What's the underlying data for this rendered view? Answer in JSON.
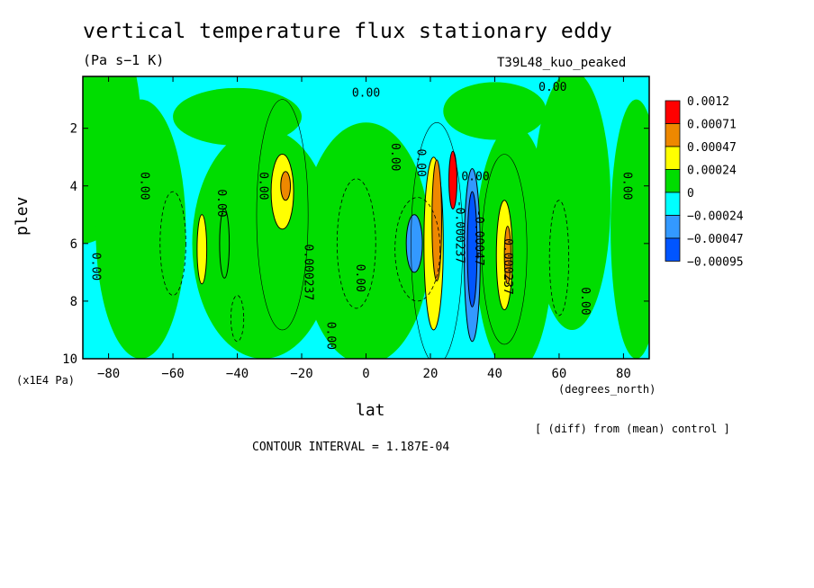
{
  "chart_data": {
    "type": "heatmap",
    "title": "vertical temperature flux stationary eddy",
    "units": "(Pa s−1 K)",
    "run_label": "T39L48_kuo_peaked",
    "xlabel": "lat",
    "xunits": "(degrees_north)",
    "ylabel": "plev",
    "yunits": "(x1E4 Pa)",
    "xlim": [
      -88,
      88
    ],
    "ylim": [
      10,
      0.2
    ],
    "xticks": [
      "−80",
      "−60",
      "−40",
      "−20",
      "0",
      "20",
      "40",
      "60",
      "80"
    ],
    "xtick_values": [
      -80,
      -60,
      -40,
      -20,
      0,
      20,
      40,
      60,
      80
    ],
    "yticks": [
      "2",
      "4",
      "6",
      "8",
      "10"
    ],
    "ytick_values": [
      2,
      4,
      6,
      8,
      10
    ],
    "colorbar": {
      "labels": [
        "0.0012",
        "0.00071",
        "0.00047",
        "0.00024",
        "0",
        "−0.00024",
        "−0.00047",
        "−0.00095"
      ],
      "colors": [
        "#ff0000",
        "#ee8800",
        "#ffff00",
        "#00dd00",
        "#00ffff",
        "#3399ff",
        "#0055ff"
      ]
    },
    "contour_labels": [
      {
        "text": "0.00",
        "lat": 0,
        "plev": 0.9
      },
      {
        "text": "0.00",
        "lat": 58,
        "plev": 0.7
      },
      {
        "text": "0.00",
        "lat": 8,
        "plev": 3.0
      },
      {
        "text": "0.00",
        "lat": 16,
        "plev": 3.2
      },
      {
        "text": "0.00",
        "lat": -70,
        "plev": 4.0
      },
      {
        "text": "0.00",
        "lat": -46,
        "plev": 4.6
      },
      {
        "text": "0.00",
        "lat": -33,
        "plev": 4.0
      },
      {
        "text": "0.00",
        "lat": 80,
        "plev": 4.0
      },
      {
        "text": "0.00",
        "lat": -85,
        "plev": 6.8
      },
      {
        "text": "0.00",
        "lat": -3,
        "plev": 7.2
      },
      {
        "text": "0.00",
        "lat": -12,
        "plev": 9.2
      },
      {
        "text": "0.00",
        "lat": 67,
        "plev": 8.0
      },
      {
        "text": "0.00",
        "lat": 34,
        "plev": 3.8
      },
      {
        "text": "0.000237",
        "lat": -19,
        "plev": 7.0
      },
      {
        "text": "0.000237",
        "lat": 43,
        "plev": 6.8
      },
      {
        "text": "-0.000237",
        "lat": 28,
        "plev": 5.6
      },
      {
        "text": "-0.00047",
        "lat": 34,
        "plev": 5.8
      }
    ],
    "blobs": [
      {
        "lat": -26,
        "plev": 4.2,
        "w": 7,
        "h": 2.6,
        "level": 2
      },
      {
        "lat": -25,
        "plev": 4.0,
        "w": 3,
        "h": 1.0,
        "level": 1
      },
      {
        "lat": -51,
        "plev": 6.2,
        "w": 3,
        "h": 2.4,
        "level": 2
      },
      {
        "lat": -44,
        "plev": 6.0,
        "w": 3,
        "h": 2.4,
        "level": 3
      },
      {
        "lat": 21,
        "plev": 6.0,
        "w": 6,
        "h": 6.0,
        "level": 2
      },
      {
        "lat": 22,
        "plev": 5.2,
        "w": 3,
        "h": 4.2,
        "level": 1
      },
      {
        "lat": 27,
        "plev": 3.8,
        "w": 2.5,
        "h": 2.0,
        "level": 0
      },
      {
        "lat": 15,
        "plev": 6.0,
        "w": 5,
        "h": 2.0,
        "level": 5
      },
      {
        "lat": 33,
        "plev": 6.4,
        "w": 5,
        "h": 6.0,
        "level": 5
      },
      {
        "lat": 33,
        "plev": 6.2,
        "w": 3,
        "h": 4.0,
        "level": 6
      },
      {
        "lat": 43,
        "plev": 6.4,
        "w": 5,
        "h": 3.8,
        "level": 2
      },
      {
        "lat": 44,
        "plev": 6.4,
        "w": 2,
        "h": 2.0,
        "level": 1
      }
    ]
  },
  "contour_interval_text": "CONTOUR INTERVAL = 1.187E-04",
  "diff_note": "[ (diff) from (mean) control ]"
}
